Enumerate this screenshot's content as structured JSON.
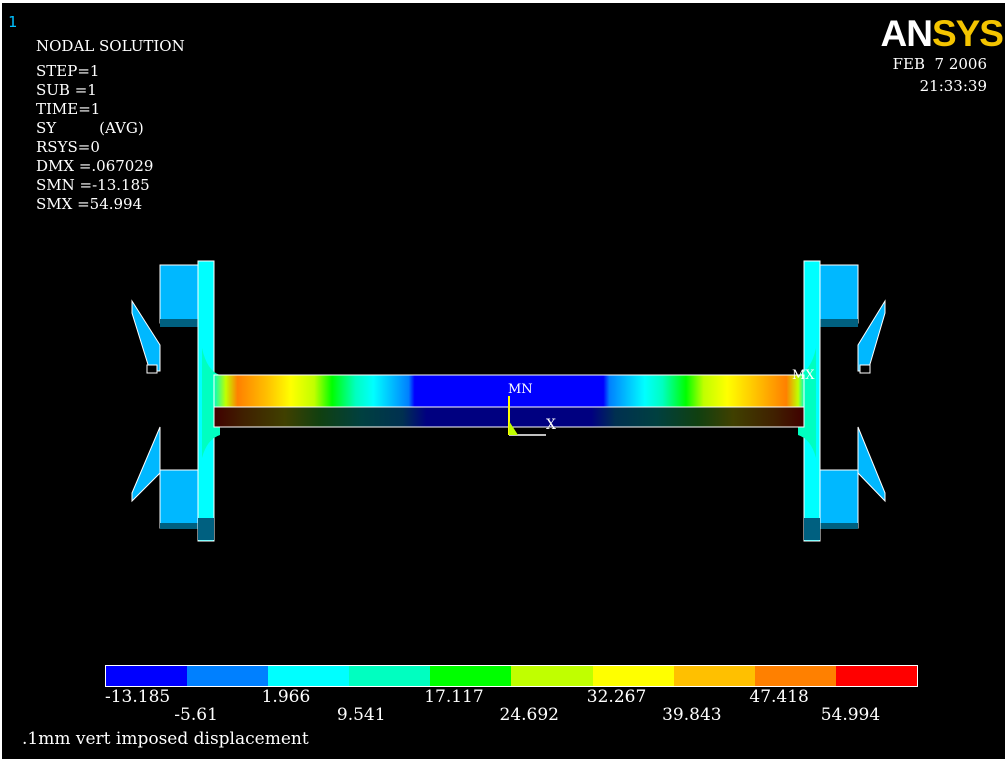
{
  "window_number": "1",
  "logo": {
    "part1": "AN",
    "part2": "SYS"
  },
  "info": {
    "title": "NODAL SOLUTION",
    "lines": [
      "STEP=1",
      "SUB =1",
      "TIME=1",
      "SY         (AVG)",
      "RSYS=0",
      "DMX =.067029",
      "SMN =-13.185",
      "SMX =54.994"
    ]
  },
  "date": "FEB  7 2006",
  "time": "21:33:39",
  "markers": {
    "min": "MN",
    "max": "MX",
    "axis": "X"
  },
  "legend": {
    "colors": [
      "#0000ff",
      "#0080ff",
      "#00ffff",
      "#00ffc0",
      "#00ff00",
      "#c0ff00",
      "#ffff00",
      "#ffc000",
      "#ff8000",
      "#ff0000"
    ],
    "top_labels": [
      "-13.185",
      "1.966",
      "17.117",
      "32.267",
      "47.418"
    ],
    "bottom_labels": [
      "-5.61",
      "9.541",
      "24.692",
      "39.843",
      "54.994"
    ]
  },
  "caption": ".1mm vert imposed displacement"
}
